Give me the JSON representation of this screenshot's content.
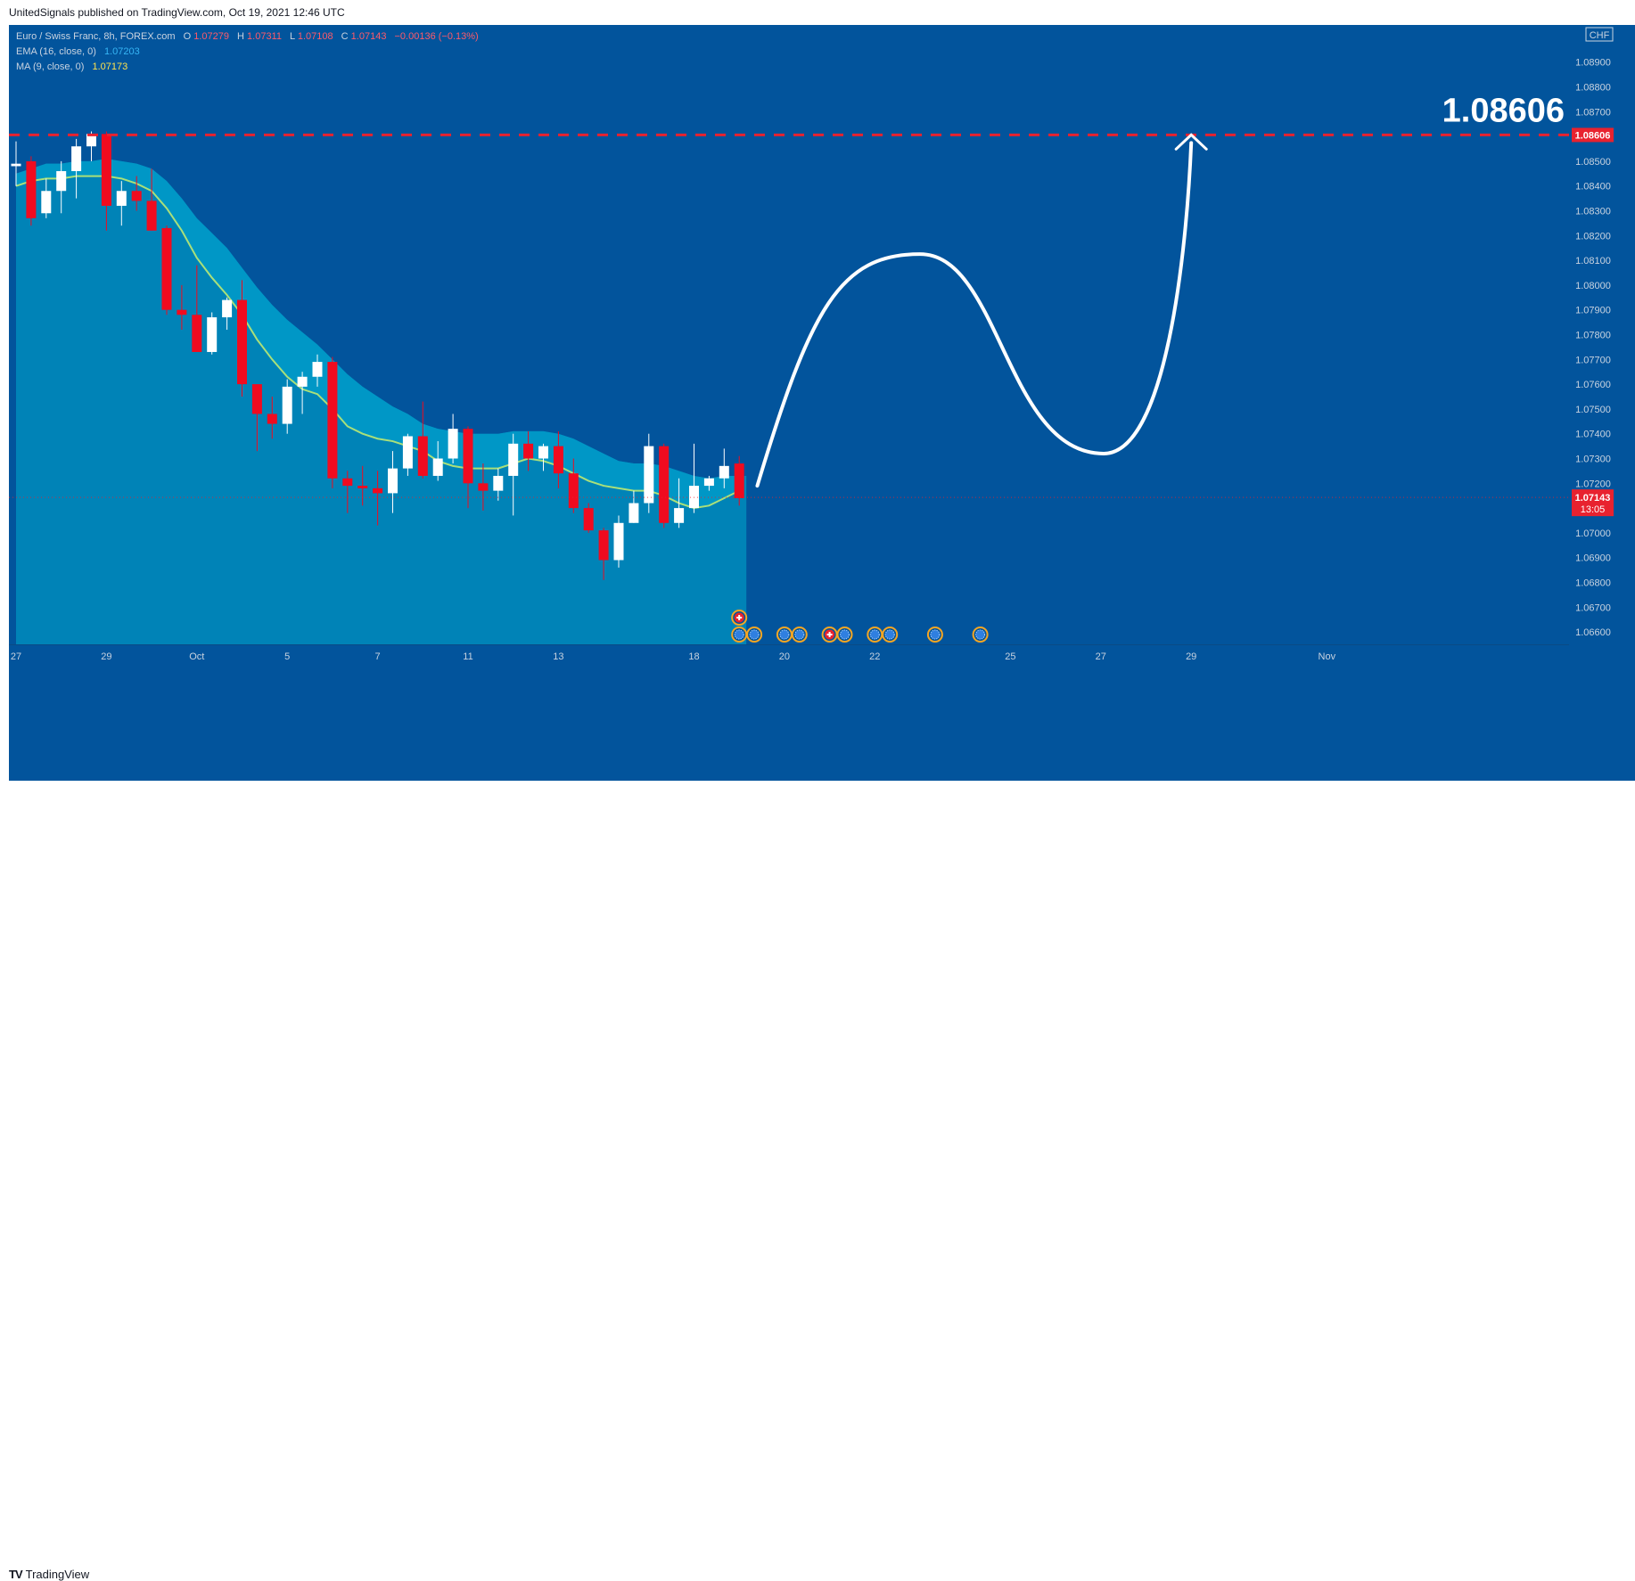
{
  "header": {
    "publish_line": "UnitedSignals published on TradingView.com, Oct 19, 2021 12:46 UTC"
  },
  "footer": {
    "logo_text": "TradingView",
    "logo_mark": "TV"
  },
  "legend": {
    "symbol": "Euro / Swiss Franc, 8h, FOREX.com",
    "o_label": "O",
    "o_value": "1.07279",
    "h_label": "H",
    "h_value": "1.07311",
    "l_label": "L",
    "l_value": "1.07108",
    "c_label": "C",
    "c_value": "1.07143",
    "change": "−0.00136 (−0.13%)",
    "ema_label": "EMA (16, close, 0)",
    "ema_value": "1.07203",
    "ma_label": "MA (9, close, 0)",
    "ma_value": "1.07173"
  },
  "price_axis": {
    "currency": "CHF",
    "current_time_left": "13:05"
  },
  "colors": {
    "background": "#02549c",
    "cloud": "#0083b7",
    "cloud_band": "#009cc9",
    "up_candle": "#ffffff",
    "down_candle": "#f00b1f",
    "ma_line": "#a9e07a",
    "target_line": "#e8222f",
    "arrow": "#ffffff",
    "ema_value": "#36b5f5",
    "ma_value": "#ffe24d"
  },
  "chart_data": {
    "type": "candlestick",
    "symbol": "Euro / Swiss Franc",
    "interval": "8h",
    "ylim": [
      1.0655,
      1.0905
    ],
    "y_ticks": [
      "1.06600",
      "1.06700",
      "1.06800",
      "1.06900",
      "1.07000",
      "1.07200",
      "1.07300",
      "1.07400",
      "1.07500",
      "1.07600",
      "1.07700",
      "1.07800",
      "1.07900",
      "1.08000",
      "1.08100",
      "1.08200",
      "1.08300",
      "1.08400",
      "1.08500",
      "1.08700",
      "1.08800",
      "1.08900"
    ],
    "x_ticks": [
      {
        "label": "27",
        "bar": 0
      },
      {
        "label": "29",
        "bar": 6
      },
      {
        "label": "Oct",
        "bar": 12
      },
      {
        "label": "5",
        "bar": 18
      },
      {
        "label": "7",
        "bar": 24
      },
      {
        "label": "11",
        "bar": 30
      },
      {
        "label": "13",
        "bar": 36
      },
      {
        "label": "18",
        "bar": 45
      },
      {
        "label": "20",
        "bar": 51
      },
      {
        "label": "22",
        "bar": 57
      },
      {
        "label": "25",
        "bar": 66
      },
      {
        "label": "27",
        "bar": 72
      },
      {
        "label": "29",
        "bar": 78
      },
      {
        "label": "Nov",
        "bar": 87
      }
    ],
    "candles": [
      {
        "o": 1.0848,
        "h": 1.0858,
        "l": 1.084,
        "c": 1.0849
      },
      {
        "o": 1.085,
        "h": 1.0852,
        "l": 1.0824,
        "c": 1.0827
      },
      {
        "o": 1.0829,
        "h": 1.0843,
        "l": 1.0827,
        "c": 1.0838
      },
      {
        "o": 1.0838,
        "h": 1.085,
        "l": 1.0829,
        "c": 1.0846
      },
      {
        "o": 1.0846,
        "h": 1.0859,
        "l": 1.0835,
        "c": 1.0856
      },
      {
        "o": 1.0856,
        "h": 1.0862,
        "l": 1.085,
        "c": 1.0861
      },
      {
        "o": 1.0861,
        "h": 1.0862,
        "l": 1.0822,
        "c": 1.0832
      },
      {
        "o": 1.0832,
        "h": 1.0842,
        "l": 1.0824,
        "c": 1.0838
      },
      {
        "o": 1.0838,
        "h": 1.0844,
        "l": 1.083,
        "c": 1.0834
      },
      {
        "o": 1.0834,
        "h": 1.0847,
        "l": 1.0822,
        "c": 1.0822
      },
      {
        "o": 1.0823,
        "h": 1.0824,
        "l": 1.0788,
        "c": 1.079
      },
      {
        "o": 1.079,
        "h": 1.08,
        "l": 1.0782,
        "c": 1.0788
      },
      {
        "o": 1.0788,
        "h": 1.0808,
        "l": 1.0773,
        "c": 1.0773
      },
      {
        "o": 1.0773,
        "h": 1.0789,
        "l": 1.0772,
        "c": 1.0787
      },
      {
        "o": 1.0787,
        "h": 1.0795,
        "l": 1.0782,
        "c": 1.0794
      },
      {
        "o": 1.0794,
        "h": 1.0802,
        "l": 1.0755,
        "c": 1.076
      },
      {
        "o": 1.076,
        "h": 1.076,
        "l": 1.0733,
        "c": 1.0748
      },
      {
        "o": 1.0748,
        "h": 1.0755,
        "l": 1.0738,
        "c": 1.0744
      },
      {
        "o": 1.0744,
        "h": 1.0762,
        "l": 1.074,
        "c": 1.0759
      },
      {
        "o": 1.0759,
        "h": 1.0765,
        "l": 1.0748,
        "c": 1.0763
      },
      {
        "o": 1.0763,
        "h": 1.0772,
        "l": 1.0759,
        "c": 1.0769
      },
      {
        "o": 1.0769,
        "h": 1.0771,
        "l": 1.0718,
        "c": 1.0722
      },
      {
        "o": 1.0722,
        "h": 1.0725,
        "l": 1.0708,
        "c": 1.0719
      },
      {
        "o": 1.0719,
        "h": 1.0727,
        "l": 1.0711,
        "c": 1.0718
      },
      {
        "o": 1.0718,
        "h": 1.0725,
        "l": 1.0703,
        "c": 1.0716
      },
      {
        "o": 1.0716,
        "h": 1.0733,
        "l": 1.0708,
        "c": 1.0726
      },
      {
        "o": 1.0726,
        "h": 1.074,
        "l": 1.0723,
        "c": 1.0739
      },
      {
        "o": 1.0739,
        "h": 1.0753,
        "l": 1.0722,
        "c": 1.0723
      },
      {
        "o": 1.0723,
        "h": 1.0737,
        "l": 1.0721,
        "c": 1.073
      },
      {
        "o": 1.073,
        "h": 1.0748,
        "l": 1.0728,
        "c": 1.0742
      },
      {
        "o": 1.0742,
        "h": 1.0743,
        "l": 1.071,
        "c": 1.072
      },
      {
        "o": 1.072,
        "h": 1.0728,
        "l": 1.0709,
        "c": 1.0717
      },
      {
        "o": 1.0717,
        "h": 1.0726,
        "l": 1.0713,
        "c": 1.0723
      },
      {
        "o": 1.0723,
        "h": 1.074,
        "l": 1.0707,
        "c": 1.0736
      },
      {
        "o": 1.0736,
        "h": 1.0741,
        "l": 1.0725,
        "c": 1.073
      },
      {
        "o": 1.073,
        "h": 1.0736,
        "l": 1.0725,
        "c": 1.0735
      },
      {
        "o": 1.0735,
        "h": 1.0741,
        "l": 1.0718,
        "c": 1.0724
      },
      {
        "o": 1.0724,
        "h": 1.073,
        "l": 1.0708,
        "c": 1.071
      },
      {
        "o": 1.071,
        "h": 1.0712,
        "l": 1.07,
        "c": 1.0701
      },
      {
        "o": 1.0701,
        "h": 1.0702,
        "l": 1.0681,
        "c": 1.0689
      },
      {
        "o": 1.0689,
        "h": 1.0707,
        "l": 1.0686,
        "c": 1.0704
      },
      {
        "o": 1.0704,
        "h": 1.0717,
        "l": 1.0704,
        "c": 1.0712
      },
      {
        "o": 1.0712,
        "h": 1.074,
        "l": 1.0708,
        "c": 1.0735
      },
      {
        "o": 1.0735,
        "h": 1.0736,
        "l": 1.0702,
        "c": 1.0704
      },
      {
        "o": 1.0704,
        "h": 1.0722,
        "l": 1.0702,
        "c": 1.071
      },
      {
        "o": 1.071,
        "h": 1.0736,
        "l": 1.0708,
        "c": 1.0719
      },
      {
        "o": 1.0719,
        "h": 1.0723,
        "l": 1.0717,
        "c": 1.0722
      },
      {
        "o": 1.0722,
        "h": 1.0734,
        "l": 1.0718,
        "c": 1.0727
      },
      {
        "o": 1.0728,
        "h": 1.0731,
        "l": 1.0711,
        "c": 1.0714
      }
    ],
    "ma": [
      1.084,
      1.0842,
      1.0843,
      1.0843,
      1.0844,
      1.0844,
      1.0844,
      1.0843,
      1.0841,
      1.0838,
      1.0831,
      1.0822,
      1.0811,
      1.0803,
      1.0796,
      1.0788,
      1.0778,
      1.077,
      1.0763,
      1.0758,
      1.0756,
      1.075,
      1.0743,
      1.074,
      1.0738,
      1.0737,
      1.0735,
      1.0733,
      1.0729,
      1.0727,
      1.0726,
      1.0726,
      1.0726,
      1.0728,
      1.073,
      1.0729,
      1.0727,
      1.0724,
      1.0721,
      1.0719,
      1.0718,
      1.0717,
      1.0717,
      1.0715,
      1.0712,
      1.071,
      1.0711,
      1.0714,
      1.0717
    ],
    "ema": [
      1.0842,
      1.0844,
      1.0846,
      1.0846,
      1.0847,
      1.0847,
      1.0848,
      1.0847,
      1.0846,
      1.0844,
      1.0839,
      1.0832,
      1.0824,
      1.0818,
      1.0812,
      1.0804,
      1.0796,
      1.0789,
      1.0783,
      1.0778,
      1.0773,
      1.0767,
      1.0761,
      1.0756,
      1.0752,
      1.0748,
      1.0745,
      1.0741,
      1.0739,
      1.0738,
      1.0737,
      1.0737,
      1.0737,
      1.0738,
      1.0738,
      1.0738,
      1.0737,
      1.0735,
      1.0732,
      1.0729,
      1.0726,
      1.0725,
      1.0725,
      1.0724,
      1.0722,
      1.072,
      1.0719,
      1.072,
      1.072
    ],
    "current_price": 1.07143,
    "current_price_label": "1.07143",
    "target_price": 1.08606,
    "target_price_label": "1.08606",
    "projection": {
      "start": {
        "bar": 49.2,
        "price": 1.0719
      },
      "peak": {
        "bar": 60,
        "price": 1.08125
      },
      "trough": {
        "bar": 72.2,
        "price": 1.0732
      },
      "end": {
        "bar": 78,
        "price": 1.0861
      }
    },
    "events": [
      {
        "bar": 48,
        "row": 0,
        "type": "holiday"
      },
      {
        "bar": 48,
        "row": 1,
        "type": "news"
      },
      {
        "bar": 49,
        "row": 1,
        "type": "news"
      },
      {
        "bar": 51,
        "row": 1,
        "type": "news"
      },
      {
        "bar": 52,
        "row": 1,
        "type": "news"
      },
      {
        "bar": 54,
        "row": 1,
        "type": "holiday"
      },
      {
        "bar": 55,
        "row": 1,
        "type": "news"
      },
      {
        "bar": 57,
        "row": 1,
        "type": "news"
      },
      {
        "bar": 58,
        "row": 1,
        "type": "news"
      },
      {
        "bar": 61,
        "row": 1,
        "type": "news"
      },
      {
        "bar": 64,
        "row": 1,
        "type": "news"
      }
    ]
  }
}
